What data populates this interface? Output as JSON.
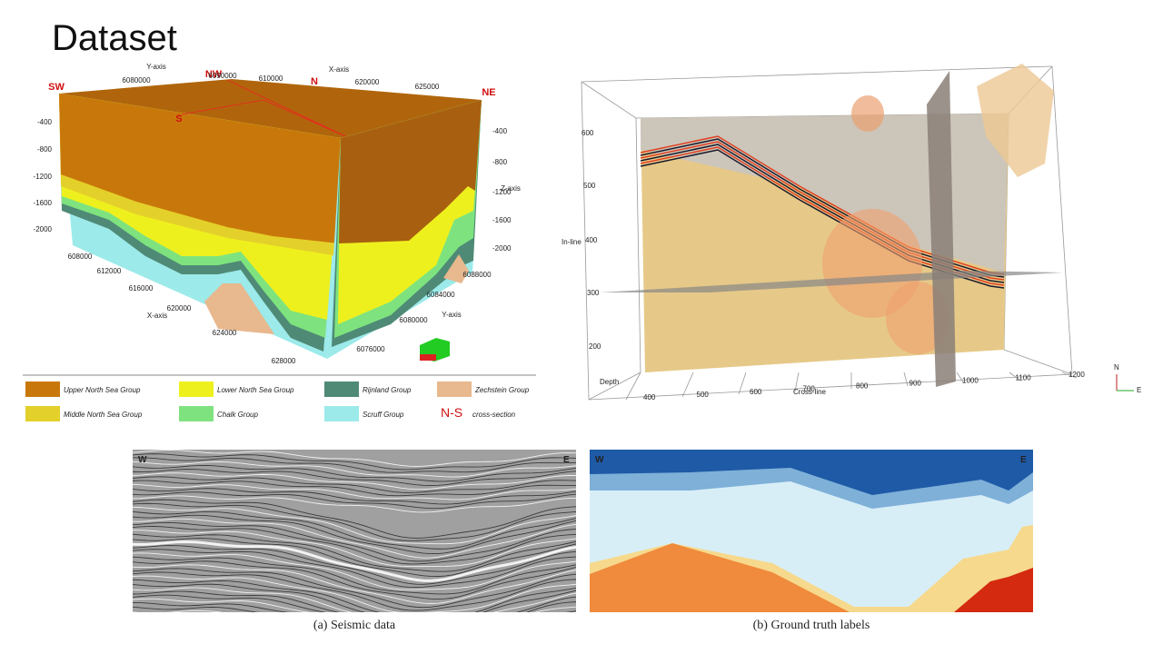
{
  "title": "Dataset",
  "block_diagram": {
    "compass": {
      "sw": "SW",
      "nw": "NW",
      "n": "N",
      "ne": "NE",
      "s": "S"
    },
    "axis_labels": {
      "top_y": "Y-axis",
      "top_x": "X-axis",
      "z": "Z-axis",
      "bottom_x": "X-axis",
      "bottom_y": "Y-axis"
    },
    "top_y_ticks": [
      "6080000",
      "6090000"
    ],
    "top_x_ticks": [
      "610000",
      "620000",
      "625000"
    ],
    "left_z_ticks": [
      "-400",
      "-800",
      "-1200",
      "-1600",
      "-2000"
    ],
    "right_z_ticks": [
      "-400",
      "-800",
      "-1200",
      "-1600",
      "-2000"
    ],
    "bottom_x_ticks": [
      "608000",
      "612000",
      "616000",
      "620000",
      "624000",
      "628000"
    ],
    "bottom_y_ticks": [
      "6076000",
      "6080000",
      "6084000",
      "6088000"
    ]
  },
  "legend": {
    "items": [
      {
        "label": "Upper North Sea Group",
        "color": "#c8780a"
      },
      {
        "label": "Lower North Sea Group",
        "color": "#eef01e"
      },
      {
        "label": "Rijnland Group",
        "color": "#4f8a76"
      },
      {
        "label": "Zechstein Group",
        "color": "#e8b88e"
      },
      {
        "label": "Middle North Sea Group",
        "color": "#e4d02a"
      },
      {
        "label": "Chalk Group",
        "color": "#7ee37e"
      },
      {
        "label": "Scruff Group",
        "color": "#9ceaea"
      }
    ],
    "section_marker": "N-S",
    "section_label": "cross-section"
  },
  "volume_view": {
    "axis_labels": {
      "inline": "In-line",
      "crossline": "Cross-line",
      "depth": "Depth"
    },
    "inline_ticks": [
      "600",
      "500",
      "400",
      "300",
      "200"
    ],
    "crossline_ticks": [
      "400",
      "500",
      "600",
      "700",
      "800",
      "900",
      "1000",
      "1100",
      "1200"
    ],
    "compass": {
      "n": "N",
      "e": "E"
    }
  },
  "sections": [
    {
      "caption": "(a) Seismic data",
      "left": "W",
      "right": "E"
    },
    {
      "caption": "(b) Ground truth labels",
      "left": "W",
      "right": "E"
    }
  ]
}
